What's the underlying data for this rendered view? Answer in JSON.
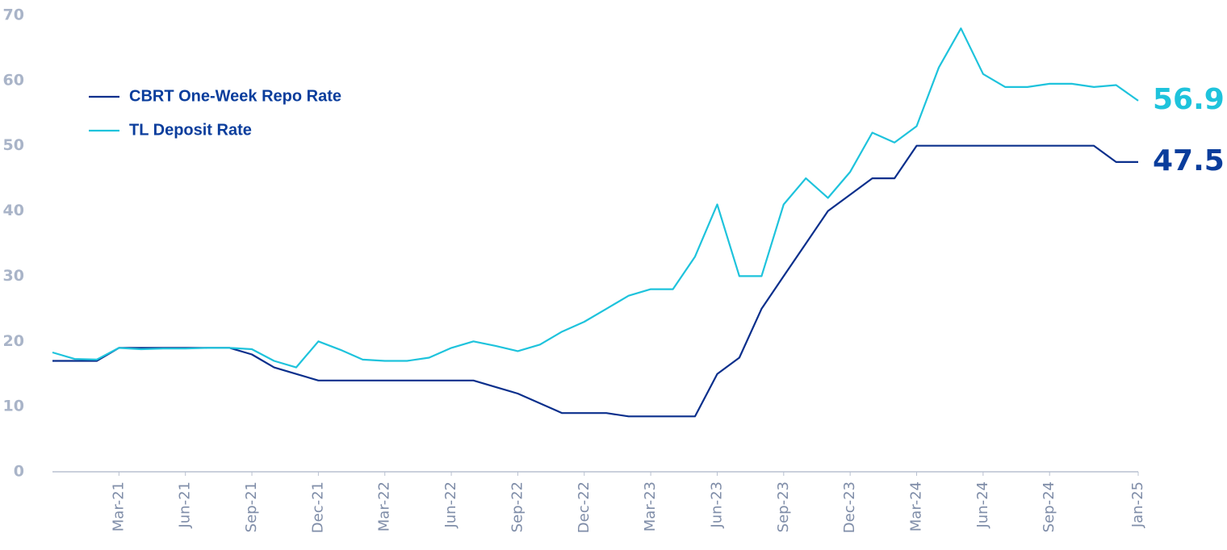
{
  "chart_data": {
    "type": "line",
    "x": [
      "2020-12",
      "2021-01",
      "2021-02",
      "2021-03",
      "2021-04",
      "2021-05",
      "2021-06",
      "2021-07",
      "2021-08",
      "2021-09",
      "2021-10",
      "2021-11",
      "2021-12",
      "2022-01",
      "2022-02",
      "2022-03",
      "2022-04",
      "2022-05",
      "2022-06",
      "2022-07",
      "2022-08",
      "2022-09",
      "2022-10",
      "2022-11",
      "2022-12",
      "2023-01",
      "2023-02",
      "2023-03",
      "2023-04",
      "2023-05",
      "2023-06",
      "2023-07",
      "2023-08",
      "2023-09",
      "2023-10",
      "2023-11",
      "2023-12",
      "2024-01",
      "2024-02",
      "2024-03",
      "2024-04",
      "2024-05",
      "2024-06",
      "2024-07",
      "2024-08",
      "2024-09",
      "2024-10",
      "2024-11",
      "2024-12",
      "2025-01"
    ],
    "series": [
      {
        "name": "CBRT One-Week Repo Rate",
        "color": "#0a2f8c",
        "label_color": "#0a3d9c",
        "last_label": "47.5",
        "values": [
          17,
          17,
          17,
          19,
          19,
          19,
          19,
          19,
          19,
          18,
          16,
          15,
          14,
          14,
          14,
          14,
          14,
          14,
          14,
          14,
          13,
          12,
          10.5,
          9,
          9,
          9,
          8.5,
          8.5,
          8.5,
          8.5,
          15,
          17.5,
          25,
          30,
          35,
          40,
          42.5,
          45,
          45,
          50,
          50,
          50,
          50,
          50,
          50,
          50,
          50,
          50,
          47.5,
          47.5
        ]
      },
      {
        "name": "TL Deposit Rate",
        "color": "#1ec3dc",
        "label_color": "#1ec3dc",
        "last_label": "56.9",
        "values": [
          18.3,
          17.3,
          17.2,
          19,
          18.8,
          18.9,
          18.9,
          19,
          19,
          18.8,
          17,
          16,
          20,
          18.7,
          17.2,
          17,
          17,
          17.5,
          19,
          20,
          19.3,
          18.5,
          19.5,
          21.5,
          23,
          25,
          27,
          28,
          28,
          33,
          41,
          30,
          30,
          41,
          45,
          42,
          46,
          52,
          50.5,
          53,
          62,
          68,
          61,
          59,
          59,
          59.5,
          59.5,
          59,
          59.3,
          56.9
        ]
      }
    ],
    "xlim": [
      "2020-12",
      "2025-01"
    ],
    "xticks": [
      {
        "value": "2021-03",
        "label": "Mar-21"
      },
      {
        "value": "2021-06",
        "label": "Jun-21"
      },
      {
        "value": "2021-09",
        "label": "Sep-21"
      },
      {
        "value": "2021-12",
        "label": "Dec-21"
      },
      {
        "value": "2022-03",
        "label": "Mar-22"
      },
      {
        "value": "2022-06",
        "label": "Jun-22"
      },
      {
        "value": "2022-09",
        "label": "Sep-22"
      },
      {
        "value": "2022-12",
        "label": "Dec-22"
      },
      {
        "value": "2023-03",
        "label": "Mar-23"
      },
      {
        "value": "2023-06",
        "label": "Jun-23"
      },
      {
        "value": "2023-09",
        "label": "Sep-23"
      },
      {
        "value": "2023-12",
        "label": "Dec-23"
      },
      {
        "value": "2024-03",
        "label": "Mar-24"
      },
      {
        "value": "2024-06",
        "label": "Jun-24"
      },
      {
        "value": "2024-09",
        "label": "Sep-24"
      },
      {
        "value": "2025-01",
        "label": "Jan-25"
      }
    ],
    "ylim": [
      0,
      70
    ],
    "yticks": [
      0,
      10,
      20,
      30,
      40,
      50,
      60,
      70
    ],
    "grid": false,
    "legend": "upper left"
  }
}
